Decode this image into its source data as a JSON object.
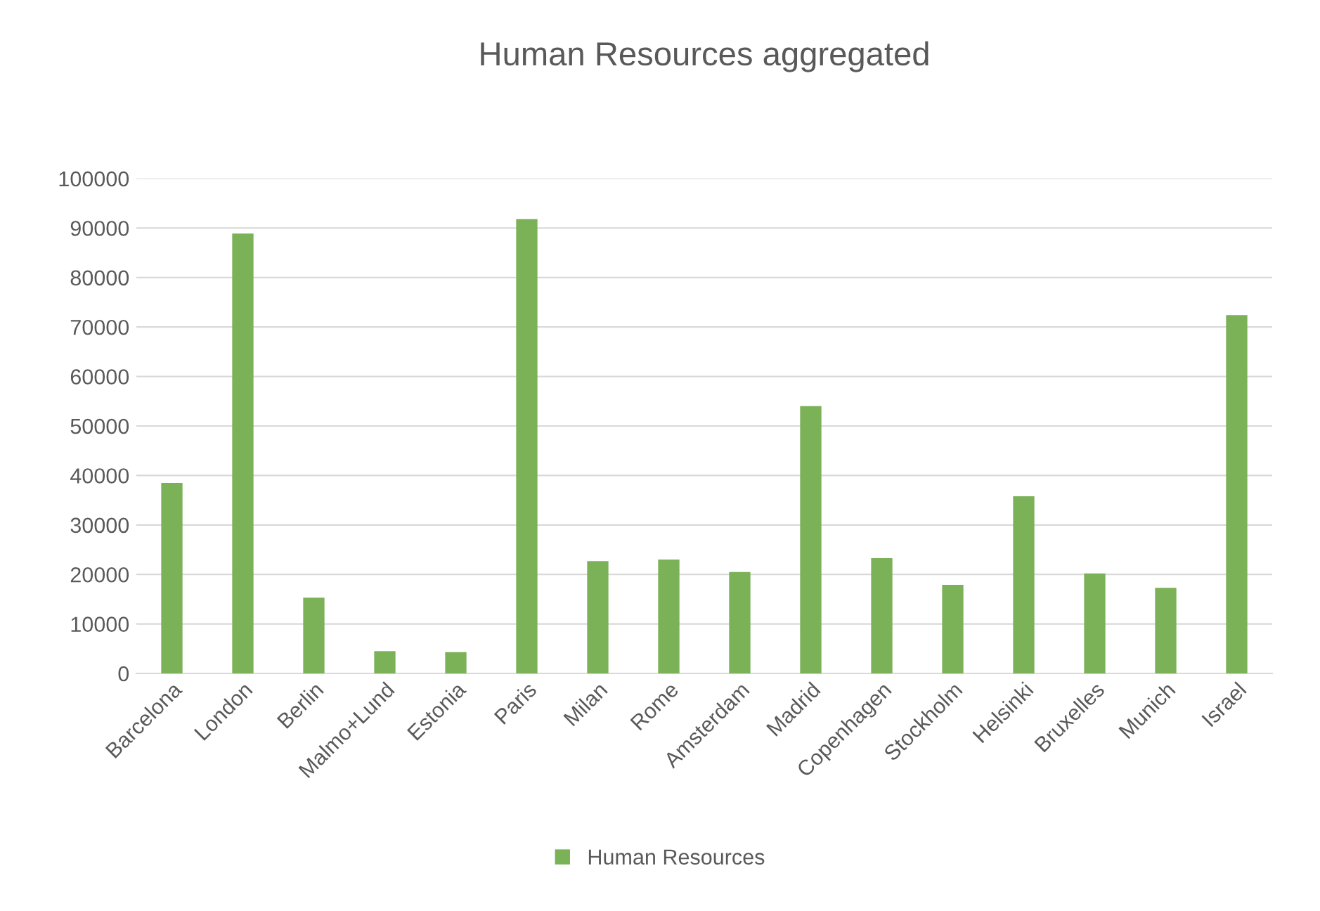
{
  "chart_data": {
    "type": "bar",
    "title": "Human Resources aggregated",
    "categories": [
      "Barcelona",
      "London",
      "Berlin",
      "Malmo+Lund",
      "Estonia",
      "Paris",
      "Milan",
      "Rome",
      "Amsterdam",
      "Madrid",
      "Copenhagen",
      "Stockholm",
      "Helsinki",
      "Bruxelles",
      "Munich",
      "Israel"
    ],
    "series": [
      {
        "name": "Human Resources",
        "color": "#7bb157",
        "values": [
          38500,
          88900,
          15300,
          4500,
          4300,
          91800,
          22700,
          23000,
          20500,
          54000,
          23300,
          17900,
          35800,
          20200,
          17300,
          72400
        ]
      }
    ],
    "ylim": [
      0,
      100000
    ],
    "yticks": [
      0,
      10000,
      20000,
      30000,
      40000,
      50000,
      60000,
      70000,
      80000,
      90000,
      100000
    ],
    "grid": "y",
    "legend": "bottom"
  }
}
